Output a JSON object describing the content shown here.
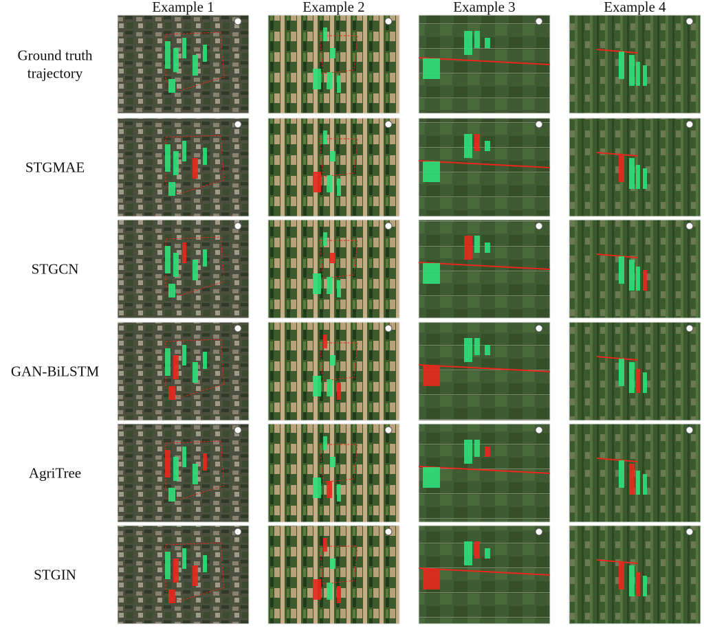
{
  "header": {
    "columns": [
      "Example 1",
      "Example 2",
      "Example 3",
      "Example 4"
    ]
  },
  "rows": [
    {
      "label": [
        "Ground truth",
        "trajectory"
      ]
    },
    {
      "label": [
        "STGMAE"
      ]
    },
    {
      "label": [
        "STGCN"
      ]
    },
    {
      "label": [
        "GAN-BiLSTM"
      ]
    },
    {
      "label": [
        "AgriTree"
      ]
    },
    {
      "label": [
        "STGIN"
      ]
    }
  ]
}
